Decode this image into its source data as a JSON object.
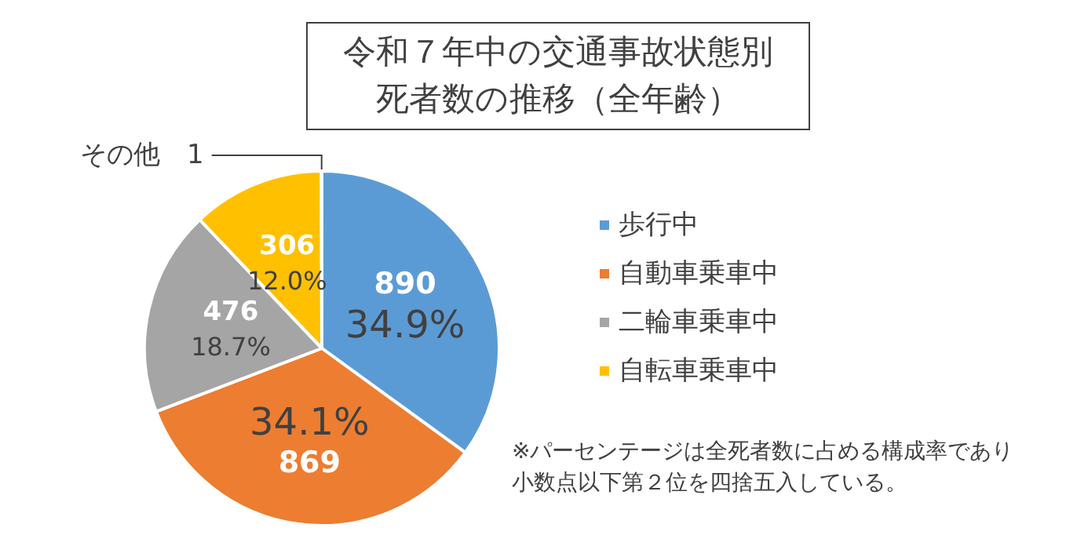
{
  "chart_data": {
    "type": "pie",
    "title": "令和７年中の交通事故状態別死者数の推移（全年齢）",
    "categories": [
      "歩行中",
      "自動車乗車中",
      "二輪車乗車中",
      "自転車乗車中",
      null
    ],
    "values": [
      890,
      869,
      476,
      306,
      1
    ],
    "colors": [
      "#5b9bd5",
      "#ed7d31",
      "#a5a5a5",
      "#ffc000",
      "#4472c4"
    ],
    "value_labels": [
      "890\n34.9%",
      "34.1%\n869",
      "476\n18.7%",
      "306\n12.0%",
      "その他　1"
    ],
    "legend": "right",
    "annotations": [
      "※パーセンテージは全死者数に占める構成率であり小数点以下第２位を四捨五入している。"
    ]
  }
}
